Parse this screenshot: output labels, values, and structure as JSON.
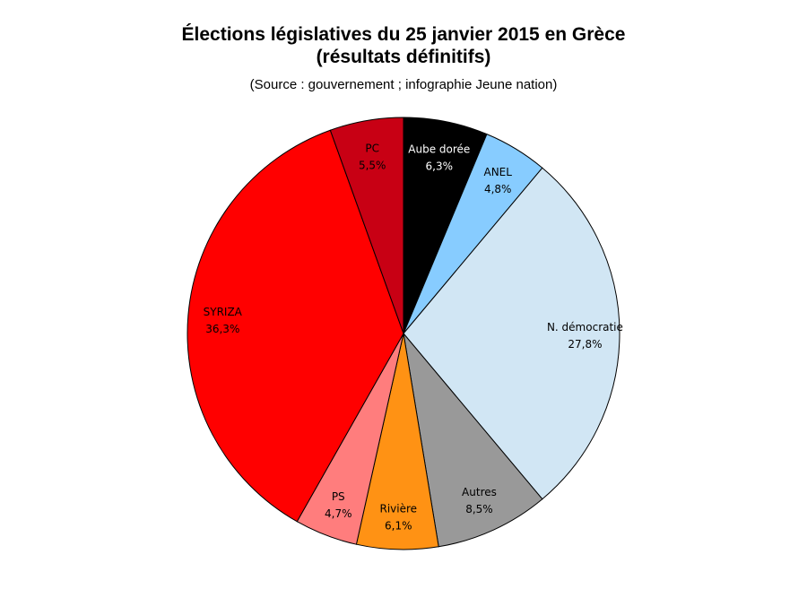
{
  "chart_data": {
    "type": "pie",
    "title_line1": "Élections législatives du 25 janvier 2015 en Grèce",
    "title_line2": "(résultats définitifs)",
    "subtitle": "(Source : gouvernement ; infographie Jeune nation)",
    "slices": [
      {
        "name": "Aube dorée",
        "value": 6.3,
        "label": "6,3%",
        "color": "#000000",
        "text_color": "#ffffff"
      },
      {
        "name": "ANEL",
        "value": 4.8,
        "label": "4,8%",
        "color": "#87ccff",
        "text_color": "#000000"
      },
      {
        "name": "N. démocratie",
        "value": 27.8,
        "label": "27,8%",
        "color": "#d1e6f4",
        "text_color": "#000000"
      },
      {
        "name": "Autres",
        "value": 8.5,
        "label": "8,5%",
        "color": "#999999",
        "text_color": "#000000"
      },
      {
        "name": "Rivière",
        "value": 6.1,
        "label": "6,1%",
        "color": "#ff9214",
        "text_color": "#000000"
      },
      {
        "name": "PS",
        "value": 4.7,
        "label": "4,7%",
        "color": "#ff7d7d",
        "text_color": "#000000"
      },
      {
        "name": "SYRIZA",
        "value": 36.3,
        "label": "36,3%",
        "color": "#ff0000",
        "text_color": "#000000"
      },
      {
        "name": "PC",
        "value": 5.5,
        "label": "5,5%",
        "color": "#c80014",
        "text_color": "#000000"
      }
    ]
  }
}
